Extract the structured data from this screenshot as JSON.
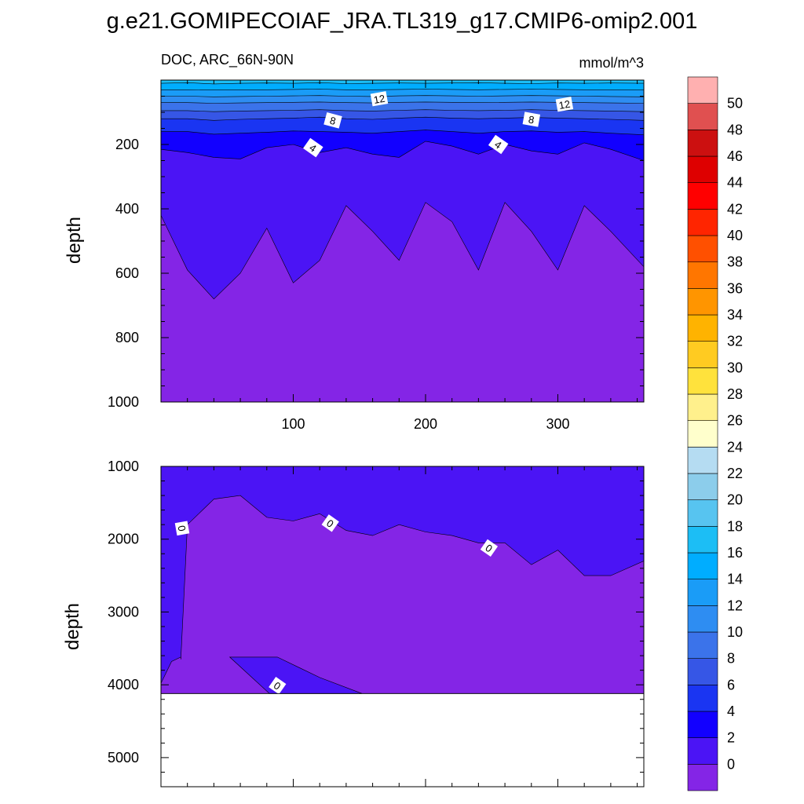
{
  "title": "g.e21.GOMIPECOIAF_JRA.TL319_g17.CMIP6-omip2.001",
  "upper_panel": {
    "left_string": "DOC, ARC_66N-90N",
    "right_string": "mmol/m^3",
    "ylabel": "depth",
    "ytick_labels": [
      "200",
      "400",
      "600",
      "800",
      "1000"
    ],
    "xtick_labels": [
      "100",
      "200",
      "300"
    ],
    "contour_labels": [
      "12",
      "12",
      "8",
      "8",
      "4",
      "4"
    ]
  },
  "lower_panel": {
    "ylabel": "depth",
    "ytick_labels": [
      "1000",
      "2000",
      "3000",
      "4000",
      "5000"
    ],
    "contour_labels": [
      "0",
      "0",
      "0",
      "0"
    ]
  },
  "colorbar": {
    "labels": [
      "0",
      "2",
      "4",
      "6",
      "8",
      "10",
      "12",
      "14",
      "16",
      "18",
      "20",
      "22",
      "24",
      "26",
      "28",
      "30",
      "32",
      "34",
      "36",
      "38",
      "40",
      "42",
      "44",
      "46",
      "48",
      "50"
    ],
    "colors": [
      "#8425e6",
      "#4b14f5",
      "#1200ff",
      "#1a35f2",
      "#3656e6",
      "#3b73ea",
      "#2e8df2",
      "#1a9cf7",
      "#00adff",
      "#1cbef5",
      "#57c4f0",
      "#8ccdeb",
      "#b5dcf2",
      "#ffffcc",
      "#fff08c",
      "#ffe23c",
      "#ffcb21",
      "#ffb300",
      "#ff9500",
      "#ff7600",
      "#ff5000",
      "#ff2500",
      "#ff0000",
      "#de0000",
      "#cc1010",
      "#e05050",
      "#ffb0b0"
    ]
  },
  "chart_data": [
    {
      "type": "heatmap",
      "subtype": "filled-contour",
      "title": "g.e21.GOMIPECOIAF_JRA.TL319_g17.CMIP6-omip2.001",
      "subtitle_left": "DOC, ARC_66N-90N",
      "subtitle_right": "mmol/m^3",
      "xlabel": "",
      "ylabel": "depth",
      "xlim": [
        0,
        365
      ],
      "ylim": [
        0,
        1000
      ],
      "y_inverted": true,
      "xticks": [
        100,
        200,
        300
      ],
      "yticks": [
        200,
        400,
        600,
        800,
        1000
      ],
      "levels": [
        0,
        2,
        4,
        6,
        8,
        10,
        12,
        14,
        16,
        18,
        20,
        22,
        24,
        26,
        28,
        30,
        32,
        34,
        36,
        38,
        40,
        42,
        44,
        46,
        48,
        50
      ],
      "contour_depths": {
        "x": [
          0,
          20,
          40,
          60,
          80,
          100,
          120,
          140,
          160,
          180,
          200,
          220,
          240,
          260,
          280,
          300,
          320,
          340,
          365
        ],
        "c2": [
          420,
          590,
          680,
          600,
          460,
          630,
          560,
          390,
          470,
          560,
          380,
          440,
          590,
          380,
          470,
          590,
          390,
          470,
          580
        ],
        "c4": [
          215,
          225,
          240,
          245,
          210,
          200,
          225,
          210,
          230,
          240,
          190,
          205,
          230,
          200,
          220,
          230,
          195,
          215,
          250
        ],
        "c6": [
          160,
          160,
          168,
          165,
          162,
          158,
          160,
          162,
          165,
          160,
          155,
          160,
          165,
          160,
          158,
          162,
          160,
          165,
          170
        ],
        "c8": [
          120,
          120,
          125,
          122,
          120,
          118,
          115,
          120,
          122,
          118,
          115,
          118,
          120,
          118,
          116,
          118,
          120,
          122,
          125
        ],
        "c10": [
          95,
          95,
          98,
          96,
          95,
          94,
          92,
          95,
          96,
          94,
          92,
          94,
          95,
          94,
          92,
          94,
          95,
          96,
          98
        ],
        "c12": [
          70,
          70,
          72,
          71,
          70,
          69,
          68,
          70,
          71,
          69,
          68,
          69,
          70,
          69,
          68,
          69,
          70,
          71,
          72
        ],
        "c14": [
          50,
          50,
          52,
          51,
          50,
          49,
          48,
          50,
          51,
          49,
          48,
          49,
          50,
          49,
          48,
          49,
          50,
          51,
          52
        ],
        "c16": [
          30,
          30,
          31,
          30,
          30,
          29,
          28,
          30,
          30,
          29,
          28,
          29,
          30,
          29,
          28,
          29,
          30,
          30,
          31
        ],
        "c18": [
          10,
          8,
          12,
          10,
          9,
          10,
          8,
          11,
          10,
          9,
          10,
          9,
          8,
          10,
          11,
          9,
          10,
          9,
          10
        ]
      }
    },
    {
      "type": "heatmap",
      "subtype": "filled-contour",
      "xlabel": "",
      "ylabel": "depth",
      "xlim": [
        0,
        365
      ],
      "ylim": [
        1000,
        5400
      ],
      "y_inverted": true,
      "xticks": [
        100,
        200,
        300
      ],
      "yticks": [
        1000,
        2000,
        3000,
        4000,
        5000
      ],
      "levels": [
        0,
        2
      ],
      "ocean_floor_depth": 4120,
      "contour_0": {
        "x": [
          15,
          20,
          40,
          60,
          80,
          100,
          120,
          140,
          160,
          180,
          200,
          220,
          240,
          260,
          280,
          300,
          320,
          340,
          365
        ],
        "depth": [
          3650,
          1800,
          1450,
          1400,
          1700,
          1750,
          1650,
          1880,
          1950,
          1800,
          1900,
          1950,
          2050,
          2050,
          2350,
          2150,
          2500,
          2500,
          2300
        ]
      }
    }
  ]
}
